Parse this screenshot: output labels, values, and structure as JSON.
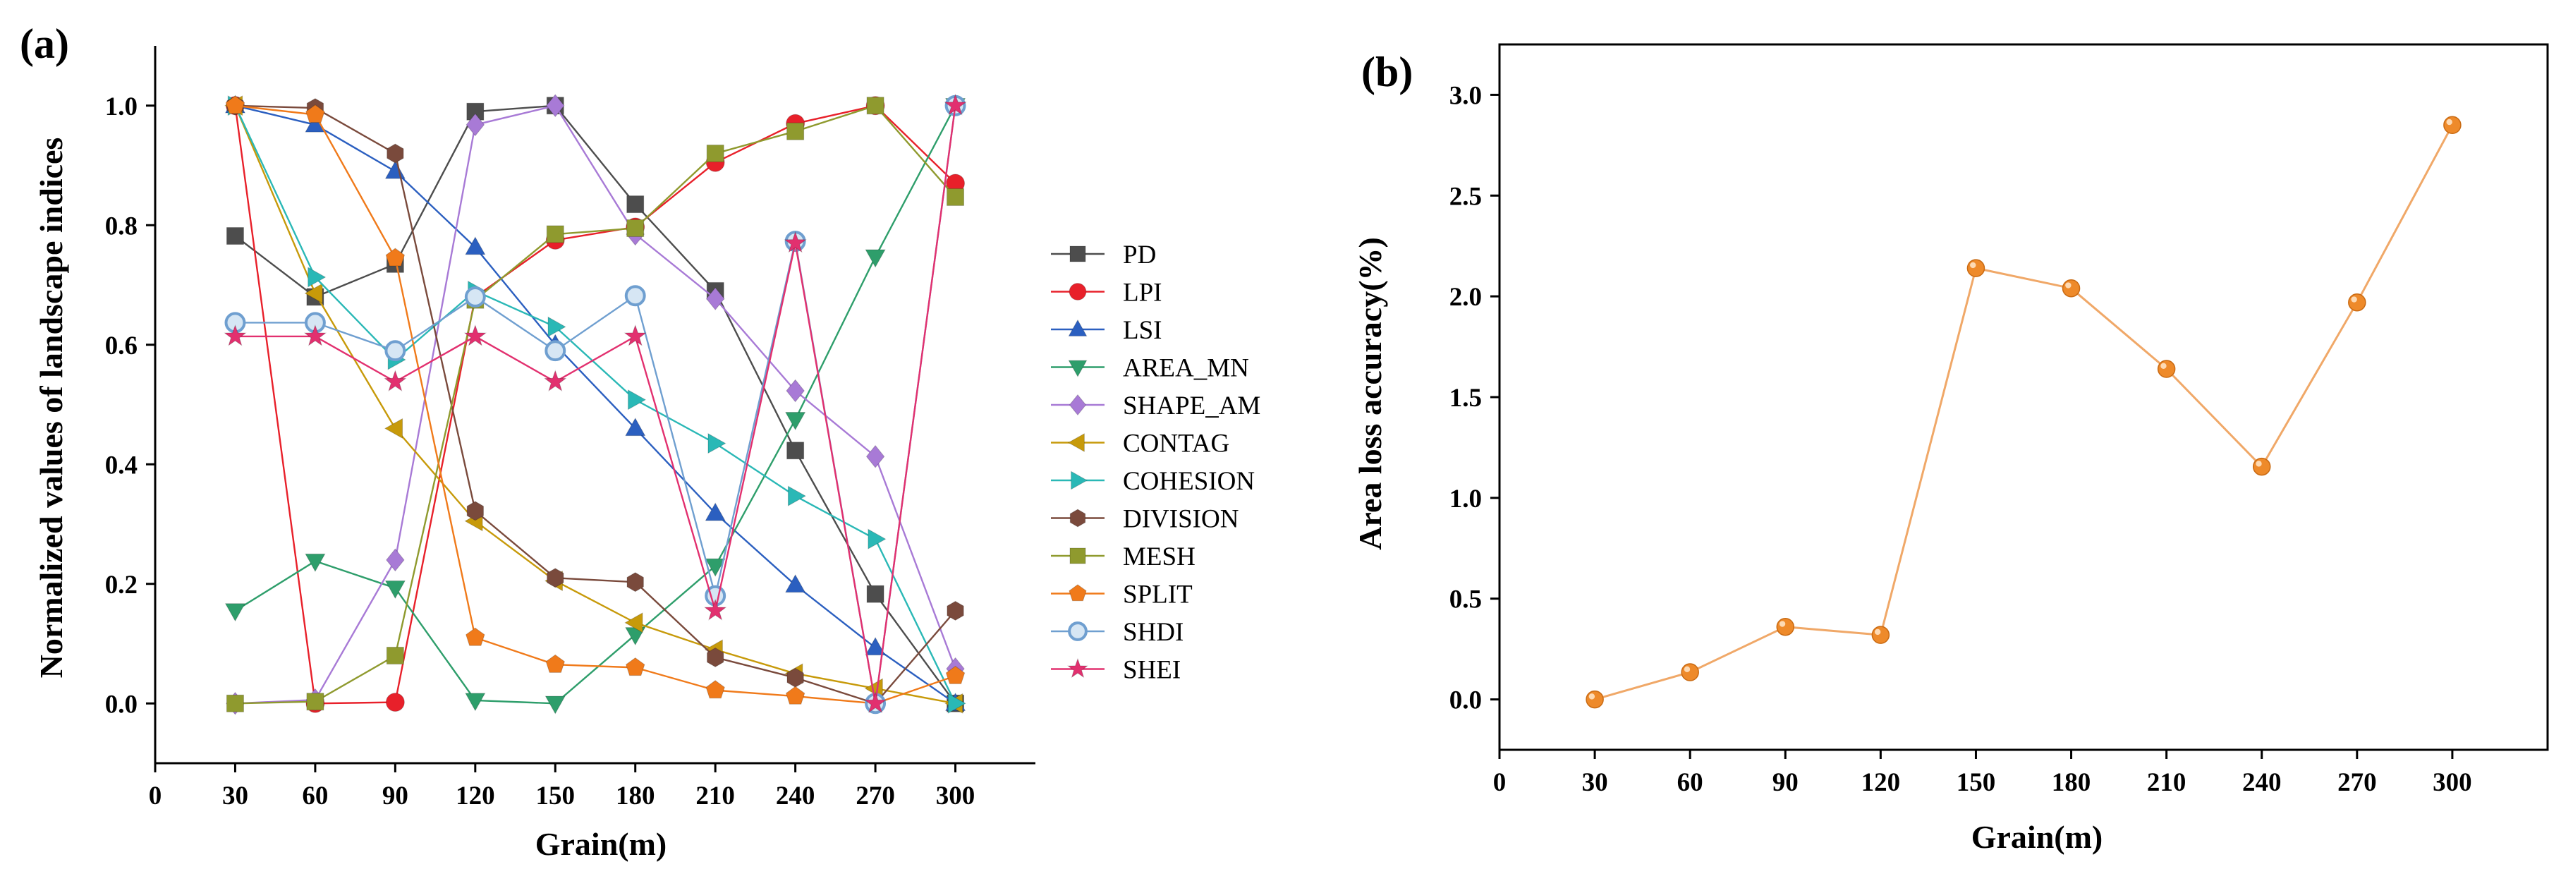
{
  "chart_data": [
    {
      "panel_label": "(a)",
      "type": "line",
      "xlabel": "Grain(m)",
      "ylabel": "Normalized values of landscape indices",
      "xlim": [
        0,
        330
      ],
      "ylim": [
        -0.1,
        1.1
      ],
      "x_ticks": [
        0,
        30,
        60,
        90,
        120,
        150,
        180,
        210,
        240,
        270,
        300
      ],
      "x_tick_labels": [
        "0",
        "30",
        "60",
        "90",
        "120",
        "150",
        "180",
        "210",
        "240",
        "270",
        "300"
      ],
      "y_ticks": [
        0.0,
        0.2,
        0.4,
        0.6,
        0.8,
        1.0
      ],
      "y_tick_labels": [
        "0.0",
        "0.2",
        "0.4",
        "0.6",
        "0.8",
        "1.0"
      ],
      "legend_position": "right",
      "x": [
        30,
        60,
        90,
        120,
        150,
        180,
        210,
        240,
        270,
        300
      ],
      "series": [
        {
          "name": "PD",
          "color": "#4d4d4d",
          "marker": "square",
          "values": [
            0.782,
            0.68,
            0.735,
            0.99,
            1.0,
            0.835,
            0.69,
            0.423,
            0.183,
            0.0
          ]
        },
        {
          "name": "LPI",
          "color": "#e8202a",
          "marker": "circle",
          "values": [
            1.0,
            0.0,
            0.002,
            0.68,
            0.775,
            0.797,
            0.905,
            0.97,
            1.0,
            0.87
          ]
        },
        {
          "name": "LSI",
          "color": "#2b5fc0",
          "marker": "triangle-up",
          "values": [
            1.0,
            0.968,
            0.89,
            0.763,
            0.6,
            0.46,
            0.318,
            0.198,
            0.093,
            0.0
          ]
        },
        {
          "name": "AREA_MN",
          "color": "#2e9e6b",
          "marker": "triangle-down",
          "values": [
            0.155,
            0.238,
            0.193,
            0.005,
            0.0,
            0.115,
            0.23,
            0.475,
            0.747,
            1.0
          ]
        },
        {
          "name": "SHAPE_AM",
          "color": "#a87ad6",
          "marker": "diamond",
          "values": [
            0.0,
            0.006,
            0.24,
            0.968,
            1.0,
            0.785,
            0.677,
            0.523,
            0.413,
            0.058
          ]
        },
        {
          "name": "CONTAG",
          "color": "#c79a0a",
          "marker": "triangle-left",
          "values": [
            1.0,
            0.686,
            0.46,
            0.305,
            0.205,
            0.135,
            0.09,
            0.05,
            0.025,
            0.0
          ]
        },
        {
          "name": "COHESION",
          "color": "#2ab8b6",
          "marker": "triangle-right",
          "values": [
            1.0,
            0.713,
            0.575,
            0.69,
            0.63,
            0.508,
            0.435,
            0.347,
            0.275,
            0.0
          ]
        },
        {
          "name": "DIVISION",
          "color": "#7a4a3c",
          "marker": "hexagon",
          "values": [
            1.0,
            0.996,
            0.92,
            0.322,
            0.21,
            0.203,
            0.077,
            0.043,
            0.0,
            0.155
          ]
        },
        {
          "name": "MESH",
          "color": "#8f9a2e",
          "marker": "square",
          "values": [
            0.0,
            0.003,
            0.08,
            0.675,
            0.785,
            0.795,
            0.92,
            0.957,
            1.0,
            0.847
          ]
        },
        {
          "name": "SPLIT",
          "color": "#f07a1a",
          "marker": "pentagon",
          "values": [
            1.0,
            0.985,
            0.745,
            0.11,
            0.065,
            0.06,
            0.022,
            0.012,
            0.0,
            0.046
          ]
        },
        {
          "name": "SHDI",
          "color": "#6f9fd0",
          "marker": "circle-open",
          "values": [
            0.637,
            0.637,
            0.59,
            0.68,
            0.59,
            0.682,
            0.18,
            0.773,
            0.0,
            1.0
          ]
        },
        {
          "name": "SHEI",
          "color": "#e2306f",
          "marker": "star",
          "values": [
            0.614,
            0.614,
            0.538,
            0.614,
            0.538,
            0.614,
            0.155,
            0.77,
            0.0,
            1.0
          ]
        }
      ]
    },
    {
      "panel_label": "(b)",
      "type": "line",
      "xlabel": "Grain(m)",
      "ylabel": "Area loss accuracy(%)",
      "xlim": [
        0,
        330
      ],
      "ylim": [
        -0.25,
        3.25
      ],
      "x_ticks": [
        0,
        30,
        60,
        90,
        120,
        150,
        180,
        210,
        240,
        270,
        300
      ],
      "x_tick_labels": [
        "0",
        "30",
        "60",
        "90",
        "120",
        "150",
        "180",
        "210",
        "240",
        "270",
        "300"
      ],
      "y_ticks": [
        0.0,
        0.5,
        1.0,
        1.5,
        2.0,
        2.5,
        3.0
      ],
      "y_tick_labels": [
        "0.0",
        "0.5",
        "1.0",
        "1.5",
        "2.0",
        "2.5",
        "3.0"
      ],
      "x": [
        30,
        60,
        90,
        120,
        150,
        180,
        210,
        240,
        270,
        300
      ],
      "series": [
        {
          "name": "Area loss accuracy",
          "color": "#f0a868",
          "marker_color": "#ee8a2a",
          "values": [
            0.0,
            0.135,
            0.36,
            0.32,
            2.14,
            2.04,
            1.64,
            1.155,
            1.97,
            2.85
          ]
        }
      ]
    }
  ]
}
